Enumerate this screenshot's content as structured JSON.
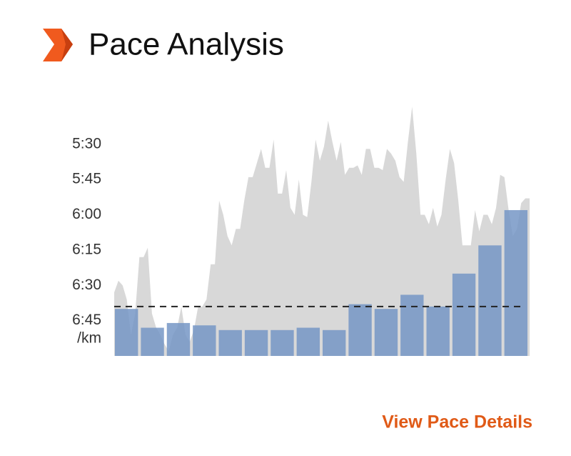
{
  "chart_data": {
    "type": "bar",
    "title": "Pace Analysis",
    "y_label": "/km",
    "y_inverted": true,
    "ylim": [
      420,
      310
    ],
    "yticks": [
      {
        "value": 330,
        "label": "5:30"
      },
      {
        "value": 345,
        "label": "5:45"
      },
      {
        "value": 360,
        "label": "6:00"
      },
      {
        "value": 375,
        "label": "6:15"
      },
      {
        "value": 390,
        "label": "6:30"
      },
      {
        "value": 405,
        "label": "6:45"
      }
    ],
    "area": {
      "color": "#d8d8d8",
      "values": [
        393,
        388,
        390,
        396,
        411,
        402,
        378,
        378,
        374,
        402,
        408,
        411,
        415,
        418,
        411,
        408,
        399,
        411,
        414,
        409,
        399,
        399,
        396,
        381,
        381,
        354,
        360,
        369,
        373,
        366,
        366,
        354,
        344,
        344,
        338,
        332,
        340,
        340,
        328,
        351,
        351,
        341,
        357,
        360,
        345,
        360,
        361,
        346,
        328,
        337,
        331,
        320,
        329,
        337,
        329,
        343,
        340,
        340,
        339,
        343,
        332,
        332,
        340,
        340,
        341,
        332,
        334,
        337,
        344,
        346,
        329,
        314,
        334,
        360,
        360,
        364,
        357,
        365,
        360,
        345,
        332,
        338,
        354,
        373,
        373,
        373,
        358,
        367,
        360,
        360,
        364,
        357,
        343,
        344,
        358,
        369,
        366,
        355,
        353,
        353
      ]
    },
    "color": "#7597c6",
    "values": [
      400,
      408,
      406,
      407,
      409,
      409,
      409,
      408,
      409,
      398,
      400,
      394,
      399,
      385,
      373,
      358
    ],
    "average": {
      "value": 399,
      "color": "#222222"
    }
  },
  "link": "View Pace Details"
}
